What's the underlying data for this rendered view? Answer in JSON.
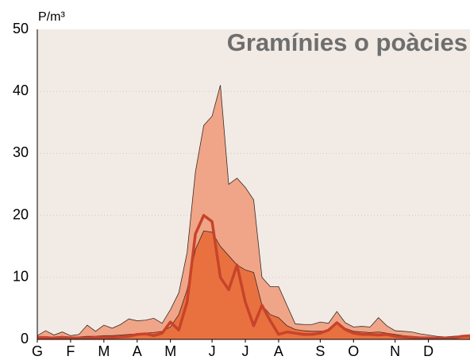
{
  "chart_data": {
    "type": "area",
    "title": "Gramínies o poàcies",
    "y_label": "P/m³",
    "x": [
      0,
      1,
      2,
      3,
      4,
      5,
      6,
      7,
      8,
      9,
      10,
      11,
      12,
      13,
      14,
      15,
      16,
      17,
      18,
      19,
      20,
      21,
      22,
      23,
      24,
      25,
      26,
      27,
      28,
      29,
      30,
      31,
      32,
      33,
      34,
      35,
      36,
      37,
      38,
      39,
      40,
      41,
      42,
      43,
      44,
      45,
      46,
      47,
      48,
      49,
      50,
      51,
      52
    ],
    "xlim": [
      0,
      52
    ],
    "xticks": [
      {
        "value": 0,
        "label": "G"
      },
      {
        "value": 4,
        "label": "F"
      },
      {
        "value": 8,
        "label": "M"
      },
      {
        "value": 12,
        "label": "A"
      },
      {
        "value": 16,
        "label": "M"
      },
      {
        "value": 21,
        "label": "J"
      },
      {
        "value": 25,
        "label": "J"
      },
      {
        "value": 29,
        "label": "A"
      },
      {
        "value": 34,
        "label": "S"
      },
      {
        "value": 38,
        "label": "O"
      },
      {
        "value": 43,
        "label": "N"
      },
      {
        "value": 47,
        "label": "D"
      }
    ],
    "ylim": [
      0,
      50
    ],
    "yticks": [
      0,
      10,
      20,
      30,
      40,
      50
    ],
    "grid": true,
    "series": [
      {
        "color": "#f0a588",
        "values": [
          0.6,
          1.4,
          0.7,
          1.2,
          0.6,
          0.8,
          2.3,
          1.3,
          2.3,
          1.8,
          2.4,
          3.3,
          3.0,
          3.1,
          3.4,
          2.6,
          4.8,
          7.5,
          14,
          27,
          34.5,
          36,
          41,
          25,
          26,
          24.5,
          22.5,
          10,
          8.5,
          8.5,
          5.5,
          2.5,
          2.4,
          2.4,
          2.8,
          2.6,
          4.5,
          2.7,
          2.0,
          2.1,
          2.0,
          3.5,
          2.2,
          1.4,
          1.3,
          1.2,
          0.9,
          0.7,
          0.5,
          0.4,
          0.5,
          0.6,
          0.6
        ]
      },
      {
        "color": "#e9713f",
        "values": [
          0.4,
          0.4,
          0.4,
          0.5,
          0.4,
          0.4,
          0.5,
          0.5,
          0.6,
          0.6,
          0.7,
          0.8,
          0.9,
          1.0,
          1.1,
          1.3,
          2.0,
          4.0,
          8.0,
          14.5,
          17.5,
          17.3,
          15,
          13.5,
          12,
          11.2,
          10.8,
          5.5,
          4.0,
          3.5,
          2.2,
          1.6,
          1.4,
          1.3,
          1.3,
          1.4,
          2.6,
          1.8,
          1.3,
          1.2,
          1.1,
          1.2,
          1.0,
          0.8,
          0.6,
          0.5,
          0.4,
          0.4,
          0.3,
          0.3,
          0.3,
          0.4,
          0.4
        ]
      },
      {
        "type": "line",
        "color": "#c8432b",
        "values": [
          0.3,
          0.3,
          0.2,
          0.3,
          0.2,
          0.2,
          0.2,
          0.3,
          0.3,
          0.3,
          0.4,
          0.5,
          0.8,
          0.9,
          0.6,
          1.0,
          2.8,
          1.5,
          6,
          17,
          20,
          19,
          10,
          8,
          12,
          6,
          2.2,
          5.5,
          3,
          0.8,
          1.2,
          1,
          0.8,
          0.8,
          1,
          1.5,
          2.7,
          1.6,
          1.0,
          0.8,
          0.8,
          0.7,
          0.8,
          0.5,
          0.4,
          0.3,
          0.2,
          0.2,
          0.2,
          0.2,
          0.2,
          0.5,
          0.6
        ]
      }
    ]
  }
}
